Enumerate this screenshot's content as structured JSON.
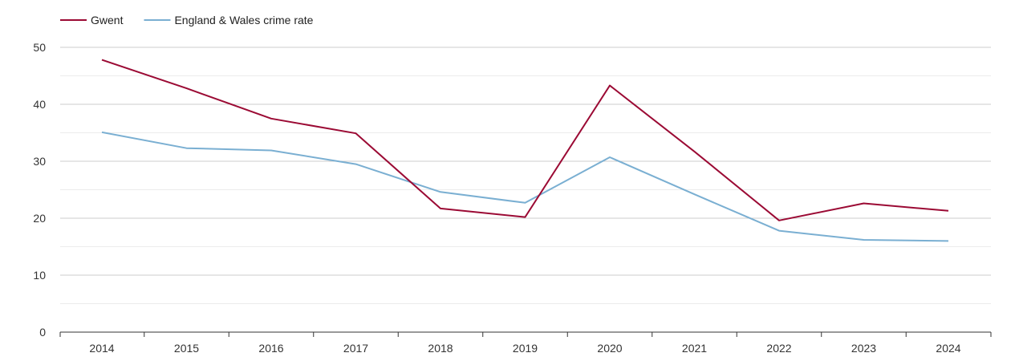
{
  "chart_data": {
    "type": "line",
    "title": "",
    "xlabel": "",
    "ylabel": "",
    "x": [
      "2014",
      "2015",
      "2016",
      "2017",
      "2018",
      "2019",
      "2020",
      "2021",
      "2022",
      "2023",
      "2024"
    ],
    "ylim": [
      0,
      50
    ],
    "yticks": [
      0,
      10,
      20,
      30,
      40,
      50
    ],
    "grid": true,
    "legend_position": "top-left",
    "series": [
      {
        "name": "Gwent",
        "color": "#9b0a34",
        "values": [
          47.8,
          42.8,
          37.5,
          34.9,
          21.7,
          20.2,
          43.3,
          31.7,
          19.6,
          22.6,
          21.3
        ]
      },
      {
        "name": "England & Wales crime rate",
        "color": "#7aafd2",
        "values": [
          35.1,
          32.3,
          31.9,
          29.5,
          24.6,
          22.7,
          30.7,
          24.2,
          17.8,
          16.2,
          16.0
        ]
      }
    ]
  }
}
